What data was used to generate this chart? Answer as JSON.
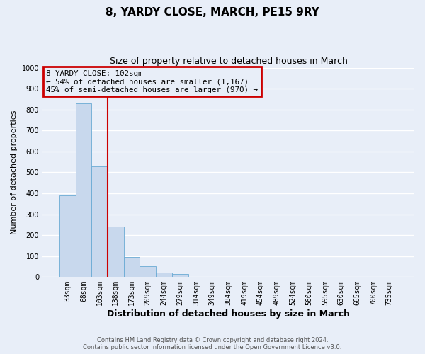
{
  "title": "8, YARDY CLOSE, MARCH, PE15 9RY",
  "subtitle": "Size of property relative to detached houses in March",
  "xlabel": "Distribution of detached houses by size in March",
  "ylabel": "Number of detached properties",
  "bar_labels": [
    "33sqm",
    "68sqm",
    "103sqm",
    "138sqm",
    "173sqm",
    "209sqm",
    "244sqm",
    "279sqm",
    "314sqm",
    "349sqm",
    "384sqm",
    "419sqm",
    "454sqm",
    "489sqm",
    "524sqm",
    "560sqm",
    "595sqm",
    "630sqm",
    "665sqm",
    "700sqm",
    "735sqm"
  ],
  "bar_values": [
    390,
    828,
    530,
    240,
    97,
    52,
    22,
    13,
    0,
    0,
    0,
    0,
    0,
    0,
    0,
    0,
    0,
    0,
    0,
    0,
    0
  ],
  "bar_color": "#c8d8ed",
  "bar_edge_color": "#6aaad4",
  "vline_color": "#cc0000",
  "ylim": [
    0,
    1000
  ],
  "yticks": [
    0,
    100,
    200,
    300,
    400,
    500,
    600,
    700,
    800,
    900,
    1000
  ],
  "annotation_title": "8 YARDY CLOSE: 102sqm",
  "annotation_line1": "← 54% of detached houses are smaller (1,167)",
  "annotation_line2": "45% of semi-detached houses are larger (970) →",
  "annotation_box_color": "#cc0000",
  "footer_line1": "Contains HM Land Registry data © Crown copyright and database right 2024.",
  "footer_line2": "Contains public sector information licensed under the Open Government Licence v3.0.",
  "background_color": "#e8eef8",
  "grid_color": "#ffffff"
}
